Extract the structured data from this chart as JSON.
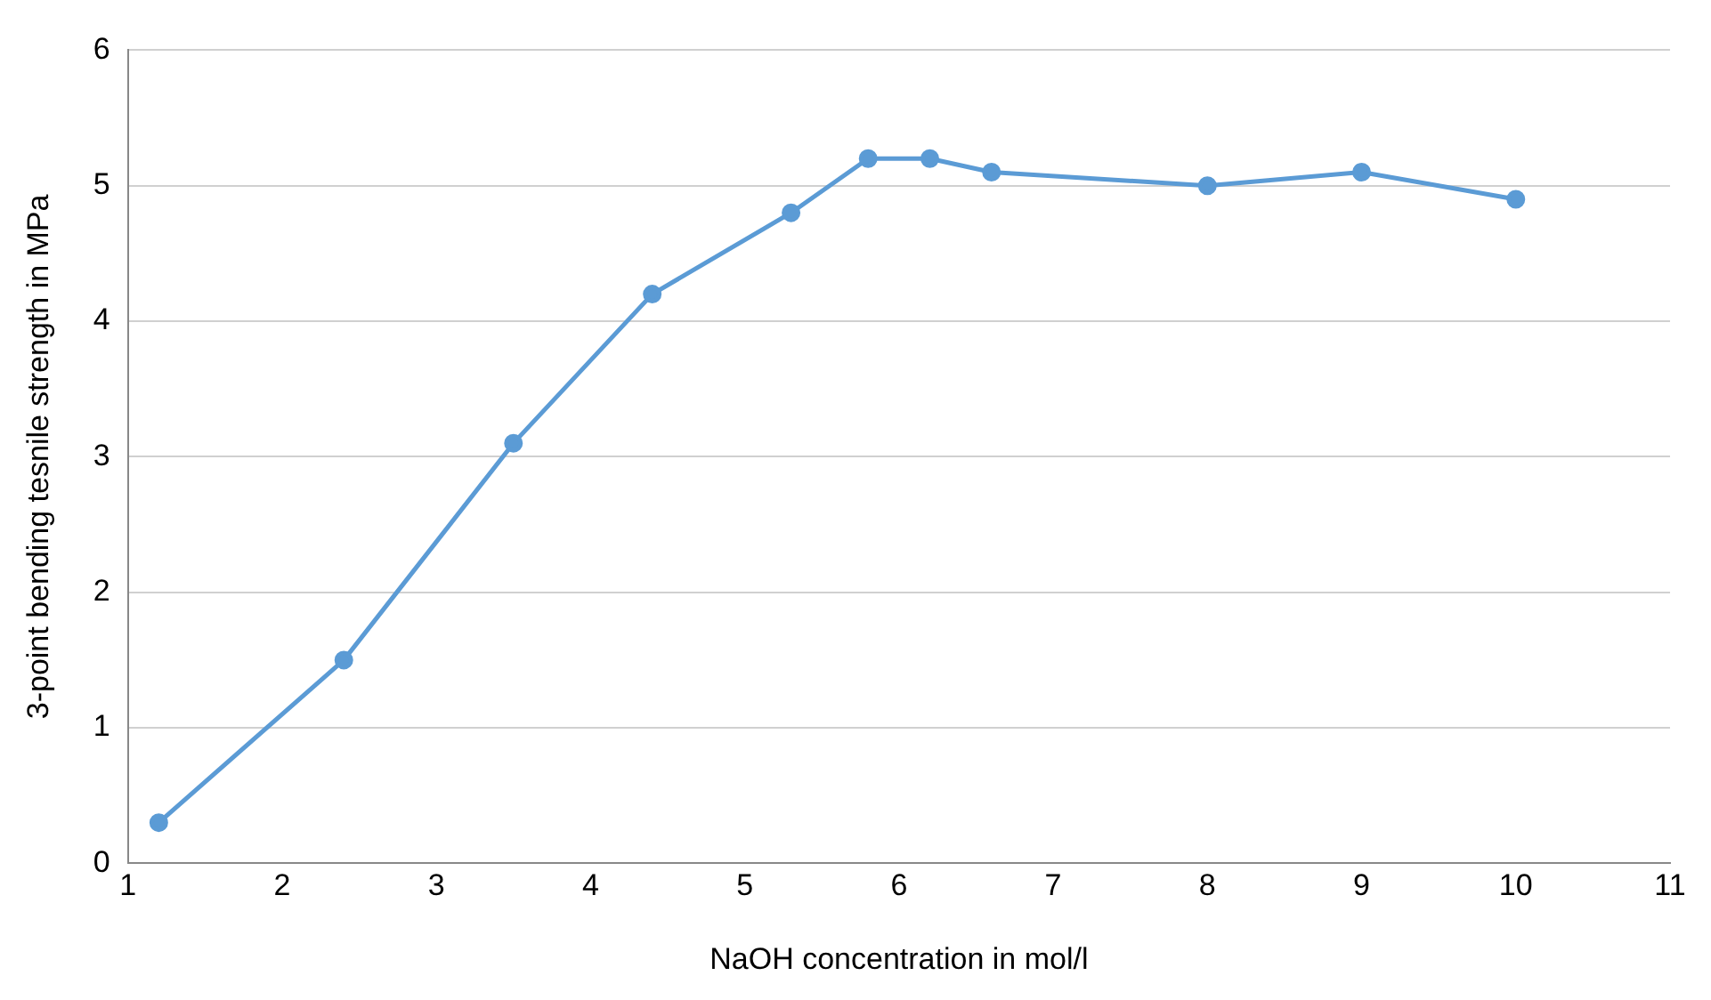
{
  "chart_data": {
    "type": "line",
    "xlabel": "NaOH concentration in mol/l",
    "ylabel": "3-point bending tesnile strength in MPa",
    "x": [
      1.2,
      2.4,
      3.5,
      4.4,
      5.3,
      5.8,
      6.2,
      6.6,
      8,
      9,
      10
    ],
    "series": [
      {
        "color": "#5b9bd5",
        "values": [
          0.3,
          1.5,
          3.1,
          4.2,
          4.8,
          5.2,
          5.2,
          5.1,
          5.0,
          5.1,
          4.9
        ]
      }
    ],
    "xlim": [
      1,
      11
    ],
    "xticks": [
      1,
      2,
      3,
      4,
      5,
      6,
      7,
      8,
      9,
      10,
      11
    ],
    "ylim": [
      0,
      6
    ],
    "yticks": [
      0,
      1,
      2,
      3,
      4,
      5,
      6
    ],
    "grid": "y",
    "marker": "circle",
    "line_style": "solid",
    "legend": false
  }
}
